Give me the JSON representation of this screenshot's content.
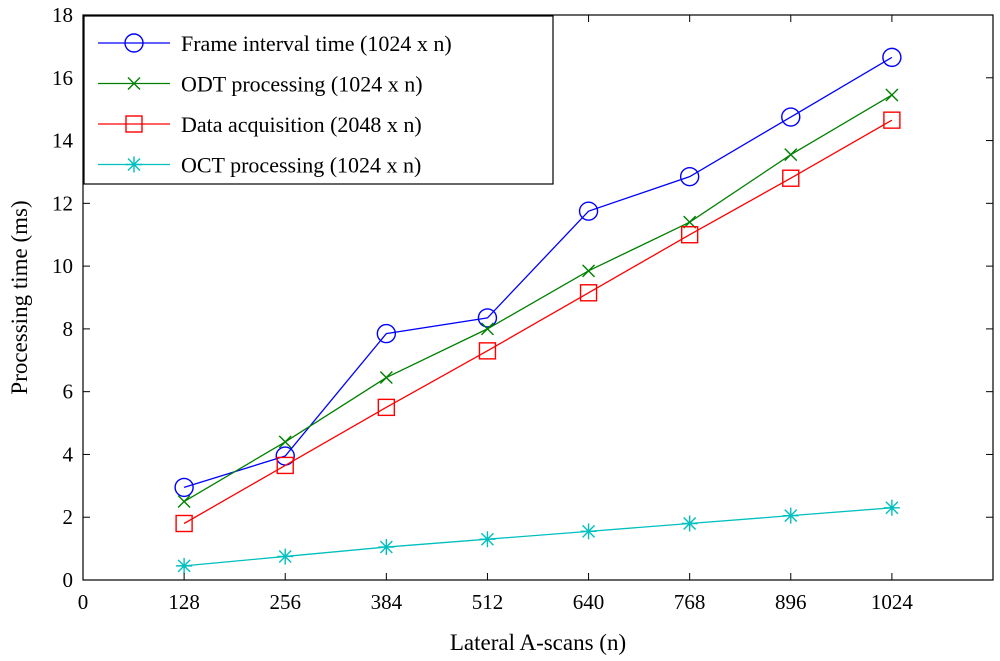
{
  "chart_data": {
    "type": "line",
    "xlabel": "Lateral A-scans (n)",
    "ylabel": "Processing time (ms)",
    "xlim": [
      0,
      1152
    ],
    "ylim": [
      0,
      18
    ],
    "x_ticks": [
      "0",
      "128",
      "256",
      "384",
      "512",
      "640",
      "768",
      "896",
      "1024"
    ],
    "y_ticks": [
      "0",
      "2",
      "4",
      "6",
      "8",
      "10",
      "12",
      "14",
      "16",
      "18"
    ],
    "grid": false,
    "legend_position": "top-left",
    "x": [
      128,
      256,
      384,
      512,
      640,
      768,
      896,
      1024
    ],
    "series": [
      {
        "name": "Frame interval time (1024 x n)",
        "color": "#0000ff",
        "marker": "circle",
        "values": [
          2.95,
          3.95,
          7.85,
          8.35,
          11.75,
          12.85,
          14.75,
          16.65
        ]
      },
      {
        "name": "ODT processing (1024 x n)",
        "color": "#008000",
        "marker": "x",
        "values": [
          2.5,
          4.4,
          6.45,
          8.0,
          9.85,
          11.4,
          13.55,
          15.45
        ]
      },
      {
        "name": "Data acquisition (2048 x n)",
        "color": "#ff0000",
        "marker": "square",
        "values": [
          1.8,
          3.65,
          5.5,
          7.3,
          9.15,
          11.0,
          12.8,
          14.65
        ]
      },
      {
        "name": "OCT processing (1024 x n)",
        "color": "#00bfbf",
        "marker": "asterisk",
        "values": [
          0.45,
          0.75,
          1.05,
          1.3,
          1.55,
          1.8,
          2.05,
          2.3
        ]
      }
    ]
  }
}
